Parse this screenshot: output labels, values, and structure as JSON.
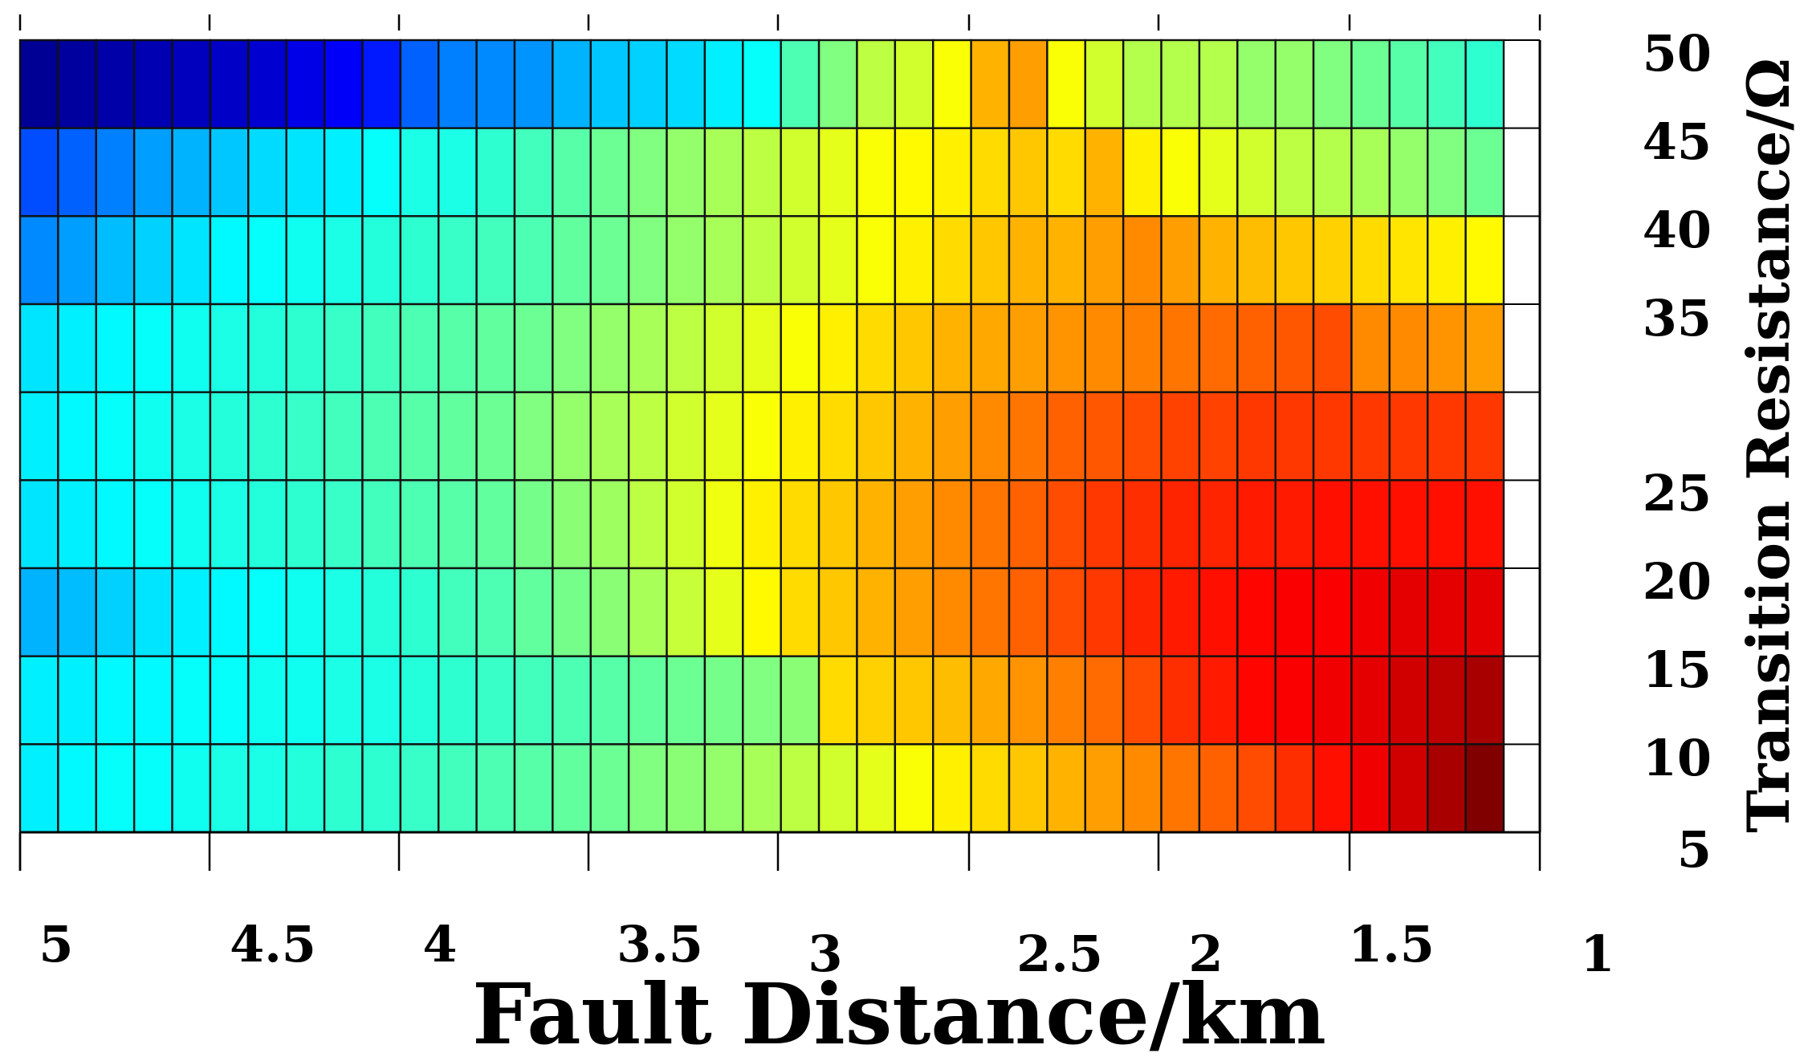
{
  "chart_data": {
    "type": "heatmap",
    "title": "",
    "xlabel": "Fault Distance/km",
    "ylabel": "Transition Resistance/Ω",
    "x_tick_labels": [
      "5",
      "4.5",
      "4",
      "3.5",
      "3",
      "2.5",
      "2",
      "1.5",
      "1"
    ],
    "y_tick_labels": [
      "50",
      "45",
      "40",
      "35",
      "25",
      "20",
      "15",
      "10",
      "5"
    ],
    "x_reversed": true,
    "xlim": [
      5,
      1
    ],
    "ylim": [
      5,
      50
    ],
    "rows": 9,
    "cols": 39,
    "colormap": "jet",
    "grid": true,
    "colorbar": false,
    "values": [
      [
        0.02,
        0.03,
        0.04,
        0.05,
        0.06,
        0.07,
        0.08,
        0.1,
        0.12,
        0.15,
        0.22,
        0.25,
        0.26,
        0.27,
        0.3,
        0.32,
        0.33,
        0.34,
        0.36,
        0.38,
        0.45,
        0.5,
        0.56,
        0.58,
        0.62,
        0.7,
        0.72,
        0.62,
        0.58,
        0.55,
        0.55,
        0.55,
        0.52,
        0.52,
        0.5,
        0.48,
        0.46,
        0.44,
        0.42
      ],
      [
        0.2,
        0.22,
        0.25,
        0.28,
        0.3,
        0.32,
        0.34,
        0.35,
        0.36,
        0.38,
        0.4,
        0.4,
        0.42,
        0.44,
        0.46,
        0.48,
        0.5,
        0.52,
        0.54,
        0.56,
        0.58,
        0.6,
        0.62,
        0.63,
        0.64,
        0.66,
        0.68,
        0.66,
        0.7,
        0.64,
        0.62,
        0.6,
        0.58,
        0.56,
        0.55,
        0.54,
        0.52,
        0.5,
        0.48
      ],
      [
        0.26,
        0.28,
        0.31,
        0.33,
        0.35,
        0.37,
        0.38,
        0.39,
        0.4,
        0.41,
        0.42,
        0.43,
        0.44,
        0.45,
        0.47,
        0.48,
        0.5,
        0.52,
        0.54,
        0.56,
        0.58,
        0.6,
        0.62,
        0.64,
        0.66,
        0.68,
        0.7,
        0.7,
        0.72,
        0.74,
        0.72,
        0.7,
        0.69,
        0.68,
        0.67,
        0.66,
        0.65,
        0.64,
        0.63
      ],
      [
        0.35,
        0.36,
        0.37,
        0.38,
        0.39,
        0.4,
        0.41,
        0.42,
        0.43,
        0.44,
        0.45,
        0.46,
        0.47,
        0.48,
        0.5,
        0.52,
        0.54,
        0.56,
        0.58,
        0.6,
        0.62,
        0.64,
        0.66,
        0.68,
        0.7,
        0.71,
        0.72,
        0.73,
        0.74,
        0.75,
        0.76,
        0.77,
        0.78,
        0.79,
        0.8,
        0.74,
        0.74,
        0.73,
        0.72
      ],
      [
        0.36,
        0.37,
        0.38,
        0.39,
        0.4,
        0.41,
        0.42,
        0.43,
        0.44,
        0.45,
        0.46,
        0.47,
        0.48,
        0.5,
        0.52,
        0.54,
        0.56,
        0.58,
        0.6,
        0.62,
        0.64,
        0.66,
        0.68,
        0.7,
        0.72,
        0.74,
        0.76,
        0.78,
        0.79,
        0.8,
        0.81,
        0.81,
        0.82,
        0.82,
        0.82,
        0.82,
        0.82,
        0.82,
        0.82
      ],
      [
        0.35,
        0.36,
        0.37,
        0.38,
        0.39,
        0.4,
        0.41,
        0.42,
        0.43,
        0.44,
        0.45,
        0.46,
        0.47,
        0.49,
        0.51,
        0.53,
        0.56,
        0.58,
        0.61,
        0.64,
        0.66,
        0.68,
        0.7,
        0.72,
        0.74,
        0.76,
        0.78,
        0.8,
        0.82,
        0.83,
        0.84,
        0.84,
        0.85,
        0.85,
        0.86,
        0.86,
        0.86,
        0.86,
        0.86
      ],
      [
        0.3,
        0.31,
        0.33,
        0.35,
        0.36,
        0.37,
        0.38,
        0.39,
        0.4,
        0.41,
        0.42,
        0.44,
        0.45,
        0.47,
        0.49,
        0.51,
        0.54,
        0.57,
        0.6,
        0.63,
        0.66,
        0.68,
        0.7,
        0.72,
        0.74,
        0.76,
        0.78,
        0.8,
        0.82,
        0.84,
        0.85,
        0.86,
        0.87,
        0.88,
        0.88,
        0.89,
        0.9,
        0.9,
        0.9
      ],
      [
        0.36,
        0.36,
        0.37,
        0.37,
        0.38,
        0.38,
        0.39,
        0.39,
        0.4,
        0.4,
        0.41,
        0.42,
        0.43,
        0.44,
        0.45,
        0.46,
        0.47,
        0.48,
        0.49,
        0.5,
        0.51,
        0.66,
        0.67,
        0.68,
        0.69,
        0.71,
        0.73,
        0.75,
        0.77,
        0.8,
        0.83,
        0.85,
        0.87,
        0.88,
        0.89,
        0.9,
        0.92,
        0.94,
        0.96
      ],
      [
        0.36,
        0.37,
        0.38,
        0.38,
        0.39,
        0.4,
        0.4,
        0.41,
        0.42,
        0.42,
        0.43,
        0.44,
        0.45,
        0.46,
        0.47,
        0.48,
        0.5,
        0.51,
        0.52,
        0.54,
        0.56,
        0.58,
        0.6,
        0.62,
        0.64,
        0.66,
        0.68,
        0.7,
        0.72,
        0.74,
        0.76,
        0.78,
        0.8,
        0.83,
        0.86,
        0.89,
        0.92,
        0.96,
        1.0
      ]
    ]
  }
}
